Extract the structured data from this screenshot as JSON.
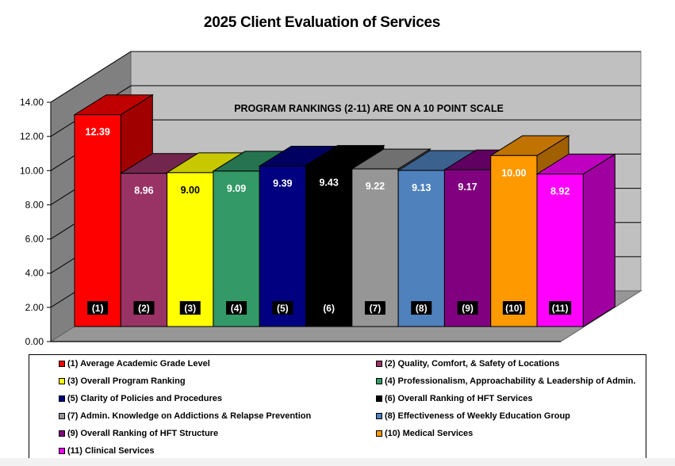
{
  "chart_data": {
    "type": "bar",
    "title": "2025 Client Evaluation of Services",
    "annotation": "PROGRAM RANKINGS (2-11) ARE ON A 10 POINT SCALE",
    "xlabel": "",
    "ylabel": "",
    "ylim": [
      0,
      14
    ],
    "yticks": [
      "0.00",
      "2.00",
      "4.00",
      "6.00",
      "8.00",
      "10.00",
      "12.00",
      "14.00"
    ],
    "grid": true,
    "legend_position": "bottom",
    "categories": [
      "(1)",
      "(2)",
      "(3)",
      "(4)",
      "(5)",
      "(6)",
      "(7)",
      "(8)",
      "(9)",
      "(10)",
      "(11)"
    ],
    "values": [
      12.39,
      8.96,
      9.0,
      9.09,
      9.39,
      9.43,
      9.22,
      9.13,
      9.17,
      10.0,
      8.92
    ],
    "value_labels": [
      "12.39",
      "8.96",
      "9.00",
      "9.09",
      "9.39",
      "9.43",
      "9.22",
      "9.13",
      "9.17",
      "10.00",
      "8.92"
    ],
    "legend": [
      "(1) Average Academic Grade Level",
      "(2) Quality, Comfort, & Safety of Locations",
      "(3) Overall Program Ranking",
      "(4) Professionalism, Approachability  & Leadership of Admin.",
      "(5) Clarity of Policies and Procedures",
      "(6) Overall Ranking of HFT Services",
      "(7) Admin. Knowledge on Addictions & Relapse Prevention",
      "(8) Effectiveness of Weekly Education Group",
      "(9) Overall Ranking of HFT Structure",
      "(10) Medical Services",
      "(11) Clinical Services"
    ],
    "colors": [
      "#ff0000",
      "#993366",
      "#ffff00",
      "#339966",
      "#000080",
      "#000000",
      "#969696",
      "#4f81bd",
      "#800080",
      "#ff9900",
      "#ff00ff"
    ],
    "top_colors": [
      "#c00000",
      "#73264d",
      "#c8c800",
      "#267350",
      "#000060",
      "#000000",
      "#707070",
      "#3b618e",
      "#600060",
      "#c07300",
      "#c000c0"
    ],
    "side_colors": [
      "#a00000",
      "#73264d",
      "#c8c800",
      "#267350",
      "#000060",
      "#000000",
      "#707070",
      "#3b618e",
      "#600060",
      "#a05f00",
      "#a000a0"
    ],
    "label_colors": [
      "#ffffff",
      "#ffffff",
      "#000000",
      "#ffffff",
      "#ffffff",
      "#ffffff",
      "#ffffff",
      "#ffffff",
      "#ffffff",
      "#ffffff",
      "#ffffff"
    ]
  }
}
